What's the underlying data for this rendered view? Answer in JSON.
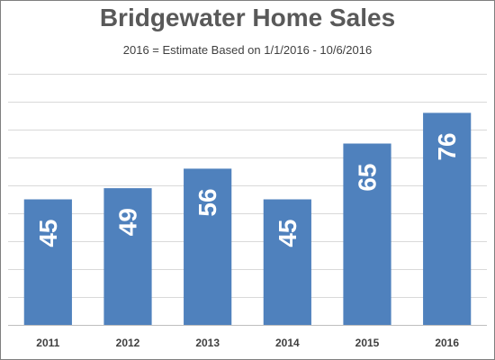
{
  "chart_data": {
    "type": "bar",
    "title": "Bridgewater Home Sales",
    "subtitle": "2016 = Estimate Based on 1/1/2016 - 10/6/2016",
    "categories": [
      "2011",
      "2012",
      "2013",
      "2014",
      "2015",
      "2016"
    ],
    "values": [
      45,
      49,
      56,
      45,
      65,
      76
    ],
    "xlabel": "",
    "ylabel": "",
    "ylim": [
      0,
      90
    ],
    "grid": true,
    "bar_color": "#4f81bd",
    "grid_color": "#d9d9d9",
    "data_labels": true,
    "data_label_orientation": "vertical"
  }
}
